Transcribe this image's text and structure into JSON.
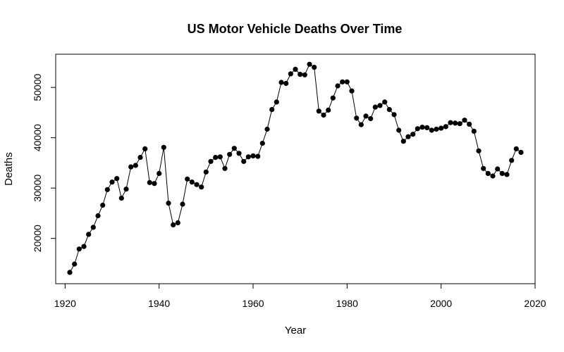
{
  "chart_data": {
    "type": "line",
    "title": "US Motor Vehicle Deaths Over Time",
    "xlabel": "Year",
    "ylabel": "Deaths",
    "xlim": [
      1918,
      2020
    ],
    "ylim": [
      11000,
      56600
    ],
    "x_ticks": [
      1920,
      1940,
      1960,
      1980,
      2000,
      2020
    ],
    "y_ticks": [
      20000,
      30000,
      40000,
      50000
    ],
    "grid": false,
    "legend": "none",
    "series": [
      {
        "x": [
          1921,
          1922,
          1923,
          1924,
          1925,
          1926,
          1927,
          1928,
          1929,
          1930,
          1931,
          1932,
          1933,
          1934,
          1935,
          1936,
          1937,
          1938,
          1939,
          1940,
          1941,
          1942,
          1943,
          1944,
          1945,
          1946,
          1947,
          1948,
          1949,
          1950,
          1951,
          1952,
          1953,
          1954,
          1955,
          1956,
          1957,
          1958,
          1959,
          1960,
          1961,
          1962,
          1963,
          1964,
          1965,
          1966,
          1967,
          1968,
          1969,
          1970,
          1971,
          1972,
          1973,
          1974,
          1975,
          1976,
          1977,
          1978,
          1979,
          1980,
          1981,
          1982,
          1983,
          1984,
          1985,
          1986,
          1987,
          1988,
          1989,
          1990,
          1991,
          1992,
          1993,
          1994,
          1995,
          1996,
          1997,
          1998,
          1999,
          2000,
          2001,
          2002,
          2003,
          2004,
          2005,
          2006,
          2007,
          2008,
          2009,
          2010,
          2011,
          2012,
          2013,
          2014,
          2015,
          2016,
          2017
        ],
        "y": [
          13250,
          14900,
          17900,
          18400,
          20800,
          22200,
          24500,
          26600,
          29700,
          31200,
          31900,
          28000,
          29800,
          34200,
          34500,
          36100,
          37800,
          31100,
          30900,
          32900,
          38100,
          27000,
          22700,
          23100,
          26800,
          31800,
          31200,
          30700,
          30200,
          33200,
          35300,
          36100,
          36200,
          33900,
          36700,
          37900,
          36900,
          35300,
          36200,
          36400,
          36300,
          38900,
          41700,
          45600,
          47100,
          51000,
          50800,
          52700,
          53600,
          52600,
          52500,
          54600,
          54000,
          45300,
          44500,
          45500,
          47900,
          50300,
          51100,
          51100,
          49300,
          43900,
          42600,
          44300,
          43800,
          46100,
          46400,
          47100,
          45600,
          44600,
          41500,
          39300,
          40200,
          40700,
          41800,
          42100,
          42000,
          41500,
          41700,
          41900,
          42200,
          43000,
          42900,
          42800,
          43500,
          42700,
          41300,
          37400,
          33900,
          32900,
          32400,
          33800,
          32900,
          32700,
          35500,
          37800,
          37100
        ]
      }
    ]
  }
}
